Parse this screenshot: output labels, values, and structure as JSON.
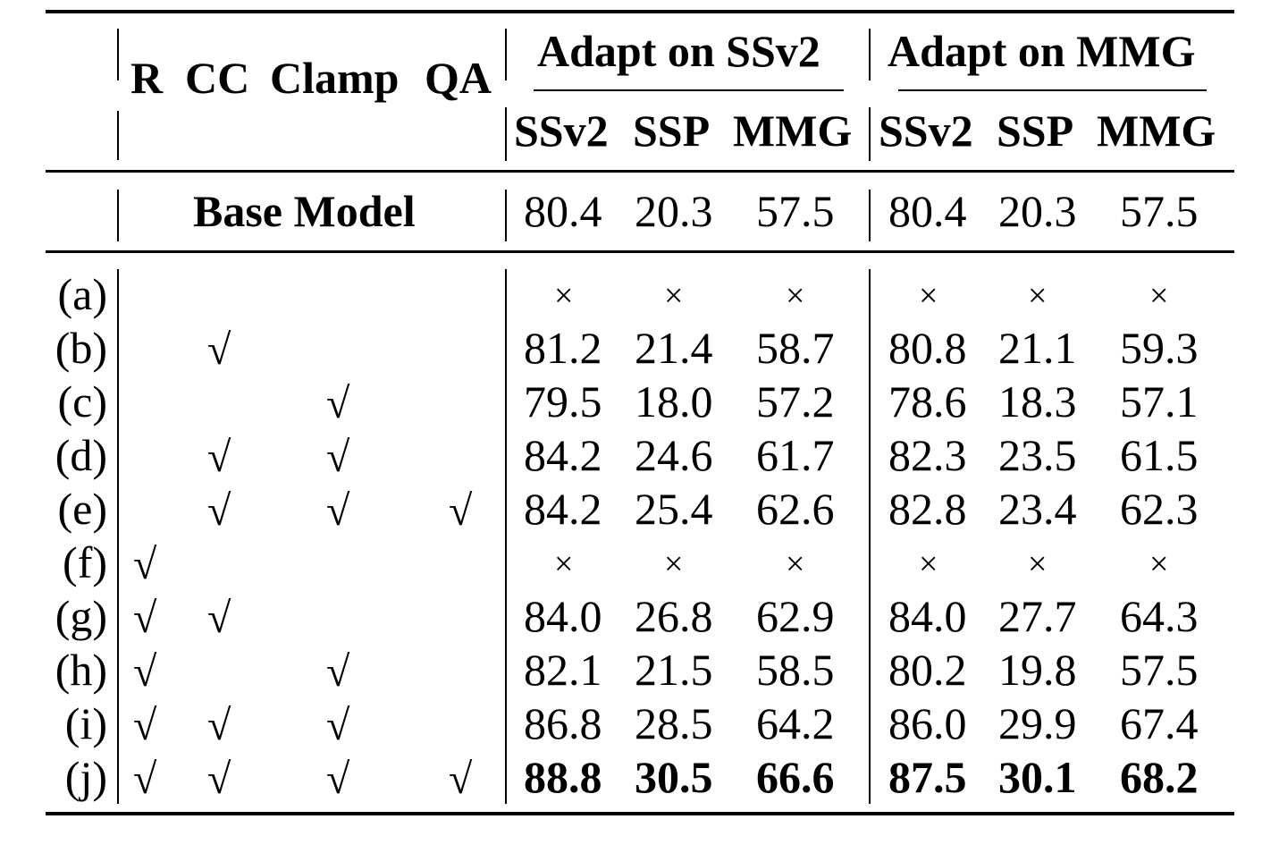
{
  "table": {
    "method_columns": [
      "R",
      "CC",
      "Clamp",
      "QA"
    ],
    "groups": [
      {
        "label": "Adapt on SSv2",
        "subcolumns": [
          "SSv2",
          "SSP",
          "MMG"
        ]
      },
      {
        "label": "Adapt on MMG",
        "subcolumns": [
          "SSv2",
          "SSP",
          "MMG"
        ]
      }
    ],
    "base_row": {
      "label": "Base Model",
      "values": [
        "80.4",
        "20.3",
        "57.5",
        "80.4",
        "20.3",
        "57.5"
      ]
    },
    "check_symbol": "√",
    "cross_symbol": "×",
    "rows": [
      {
        "label": "(a)",
        "checks": [
          false,
          false,
          false,
          false
        ],
        "values": [
          "×",
          "×",
          "×",
          "×",
          "×",
          "×"
        ],
        "bold": false
      },
      {
        "label": "(b)",
        "checks": [
          false,
          true,
          false,
          false
        ],
        "values": [
          "81.2",
          "21.4",
          "58.7",
          "80.8",
          "21.1",
          "59.3"
        ],
        "bold": false
      },
      {
        "label": "(c)",
        "checks": [
          false,
          false,
          true,
          false
        ],
        "values": [
          "79.5",
          "18.0",
          "57.2",
          "78.6",
          "18.3",
          "57.1"
        ],
        "bold": false
      },
      {
        "label": "(d)",
        "checks": [
          false,
          true,
          true,
          false
        ],
        "values": [
          "84.2",
          "24.6",
          "61.7",
          "82.3",
          "23.5",
          "61.5"
        ],
        "bold": false
      },
      {
        "label": "(e)",
        "checks": [
          false,
          true,
          true,
          true
        ],
        "values": [
          "84.2",
          "25.4",
          "62.6",
          "82.8",
          "23.4",
          "62.3"
        ],
        "bold": false
      },
      {
        "label": "(f)",
        "checks": [
          true,
          false,
          false,
          false
        ],
        "values": [
          "×",
          "×",
          "×",
          "×",
          "×",
          "×"
        ],
        "bold": false
      },
      {
        "label": "(g)",
        "checks": [
          true,
          true,
          false,
          false
        ],
        "values": [
          "84.0",
          "26.8",
          "62.9",
          "84.0",
          "27.7",
          "64.3"
        ],
        "bold": false
      },
      {
        "label": "(h)",
        "checks": [
          true,
          false,
          true,
          false
        ],
        "values": [
          "82.1",
          "21.5",
          "58.5",
          "80.2",
          "19.8",
          "57.5"
        ],
        "bold": false
      },
      {
        "label": "(i)",
        "checks": [
          true,
          true,
          true,
          false
        ],
        "values": [
          "86.8",
          "28.5",
          "64.2",
          "86.0",
          "29.9",
          "67.4"
        ],
        "bold": false
      },
      {
        "label": "(j)",
        "checks": [
          true,
          true,
          true,
          true
        ],
        "values": [
          "88.8",
          "30.5",
          "66.6",
          "87.5",
          "30.1",
          "68.2"
        ],
        "bold": true
      }
    ]
  }
}
